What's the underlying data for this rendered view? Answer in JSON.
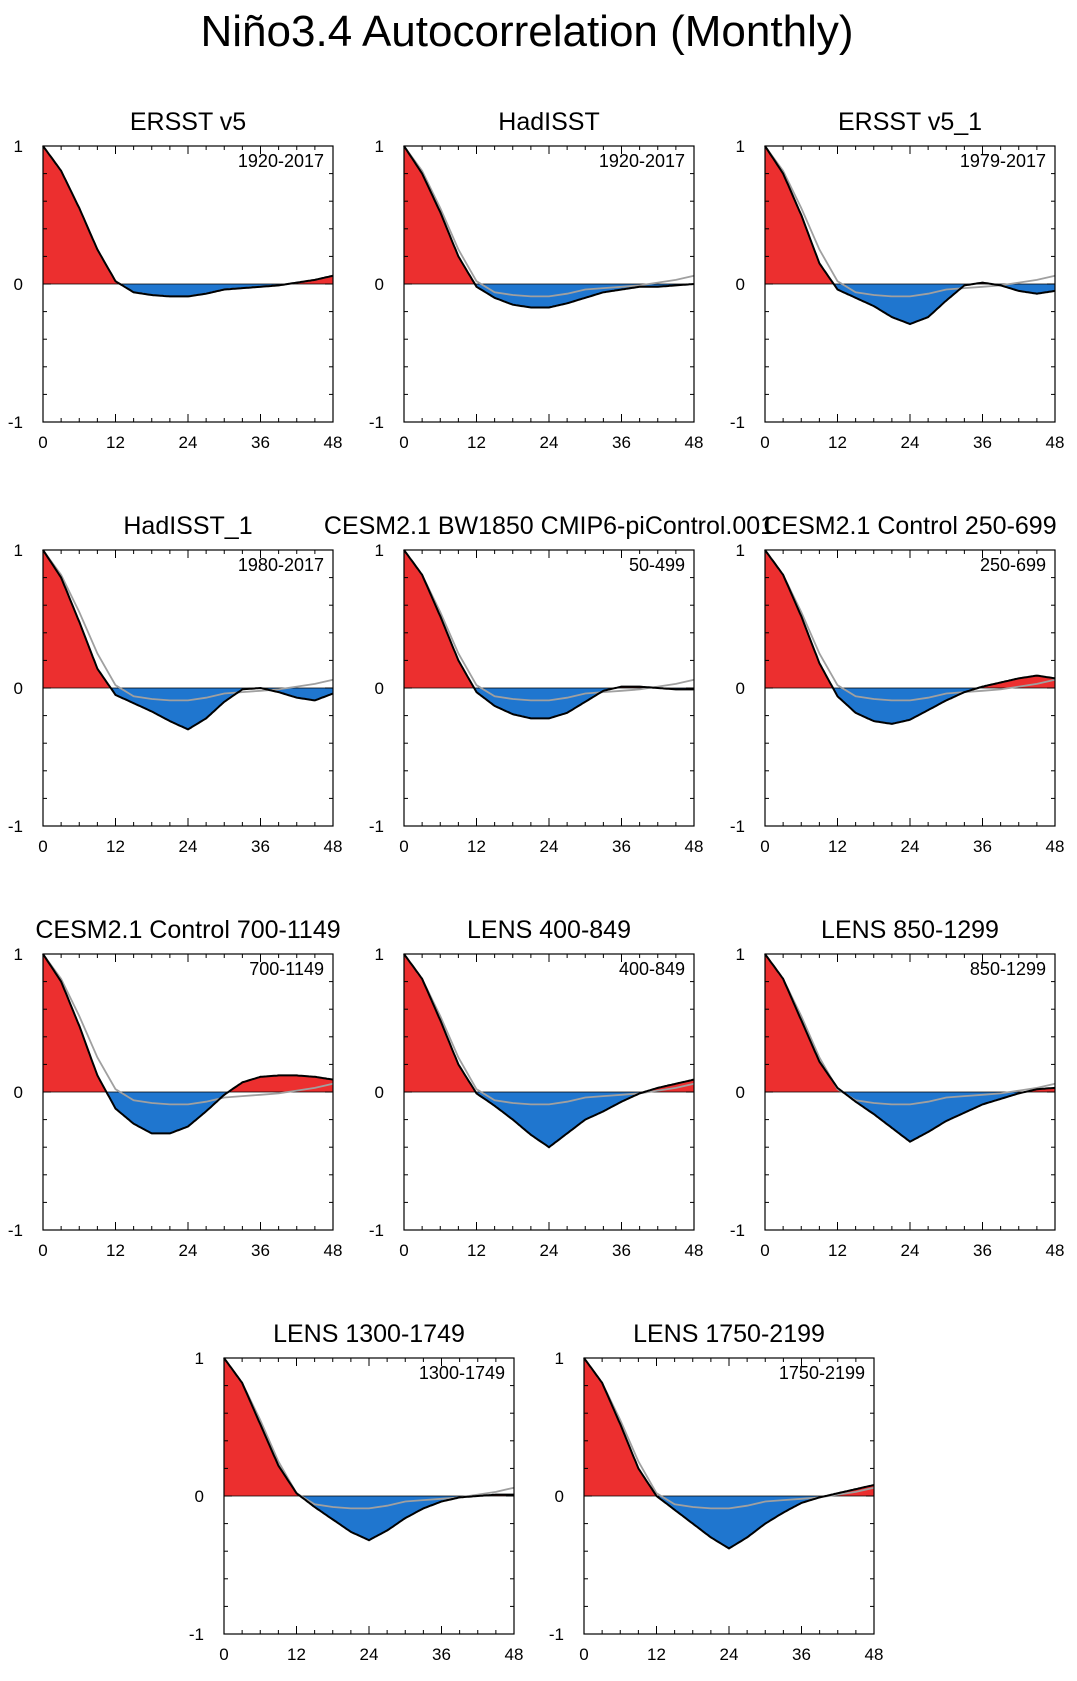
{
  "page_title": "Niño3.4 Autocorrelation (Monthly)",
  "colors": {
    "positive_fill": "#ec2f2f",
    "negative_fill": "#1f76cf",
    "line": "#000000",
    "reference_line": "#a0a0a0",
    "axis": "#000000"
  },
  "chart_data": [
    {
      "type": "area",
      "title": "ERSST v5",
      "period": "1920-2017",
      "xlim": [
        0,
        48
      ],
      "ylim": [
        -1,
        1
      ],
      "xticks": [
        "0",
        "12",
        "24",
        "36",
        "48"
      ],
      "yticks": [
        "1",
        "0",
        "-1"
      ],
      "x": [
        0,
        3,
        6,
        9,
        12,
        15,
        18,
        21,
        24,
        27,
        30,
        33,
        36,
        39,
        42,
        45,
        48
      ],
      "values": [
        1.0,
        0.82,
        0.55,
        0.25,
        0.02,
        -0.06,
        -0.08,
        -0.09,
        -0.09,
        -0.07,
        -0.04,
        -0.03,
        -0.02,
        -0.01,
        0.01,
        0.03,
        0.06
      ],
      "reference": [
        1.0,
        0.82,
        0.55,
        0.25,
        0.02,
        -0.06,
        -0.08,
        -0.09,
        -0.09,
        -0.07,
        -0.04,
        -0.03,
        -0.02,
        -0.01,
        0.01,
        0.03,
        0.06
      ]
    },
    {
      "type": "area",
      "title": "HadISST",
      "period": "1920-2017",
      "xlim": [
        0,
        48
      ],
      "ylim": [
        -1,
        1
      ],
      "xticks": [
        "0",
        "12",
        "24",
        "36",
        "48"
      ],
      "yticks": [
        "1",
        "0",
        "-1"
      ],
      "x": [
        0,
        3,
        6,
        9,
        12,
        15,
        18,
        21,
        24,
        27,
        30,
        33,
        36,
        39,
        42,
        45,
        48
      ],
      "values": [
        1.0,
        0.8,
        0.52,
        0.2,
        -0.02,
        -0.1,
        -0.15,
        -0.17,
        -0.17,
        -0.14,
        -0.1,
        -0.06,
        -0.04,
        -0.02,
        -0.02,
        -0.01,
        0.0
      ],
      "reference": [
        1.0,
        0.82,
        0.55,
        0.25,
        0.02,
        -0.06,
        -0.08,
        -0.09,
        -0.09,
        -0.07,
        -0.04,
        -0.03,
        -0.02,
        -0.01,
        0.01,
        0.03,
        0.06
      ]
    },
    {
      "type": "area",
      "title": "ERSST v5_1",
      "period": "1979-2017",
      "xlim": [
        0,
        48
      ],
      "ylim": [
        -1,
        1
      ],
      "xticks": [
        "0",
        "12",
        "24",
        "36",
        "48"
      ],
      "yticks": [
        "1",
        "0",
        "-1"
      ],
      "x": [
        0,
        3,
        6,
        9,
        12,
        15,
        18,
        21,
        24,
        27,
        30,
        33,
        36,
        39,
        42,
        45,
        48
      ],
      "values": [
        1.0,
        0.8,
        0.5,
        0.15,
        -0.04,
        -0.1,
        -0.16,
        -0.24,
        -0.29,
        -0.24,
        -0.12,
        -0.01,
        0.01,
        -0.01,
        -0.05,
        -0.07,
        -0.05
      ],
      "reference": [
        1.0,
        0.82,
        0.55,
        0.25,
        0.02,
        -0.06,
        -0.08,
        -0.09,
        -0.09,
        -0.07,
        -0.04,
        -0.03,
        -0.02,
        -0.01,
        0.01,
        0.03,
        0.06
      ]
    },
    {
      "type": "area",
      "title": "HadISST_1",
      "period": "1980-2017",
      "xlim": [
        0,
        48
      ],
      "ylim": [
        -1,
        1
      ],
      "xticks": [
        "0",
        "12",
        "24",
        "36",
        "48"
      ],
      "yticks": [
        "1",
        "0",
        "-1"
      ],
      "x": [
        0,
        3,
        6,
        9,
        12,
        15,
        18,
        21,
        24,
        27,
        30,
        33,
        36,
        39,
        42,
        45,
        48
      ],
      "values": [
        1.0,
        0.8,
        0.48,
        0.14,
        -0.05,
        -0.11,
        -0.17,
        -0.24,
        -0.3,
        -0.22,
        -0.1,
        -0.01,
        0.0,
        -0.03,
        -0.07,
        -0.09,
        -0.04
      ],
      "reference": [
        1.0,
        0.82,
        0.55,
        0.25,
        0.02,
        -0.06,
        -0.08,
        -0.09,
        -0.09,
        -0.07,
        -0.04,
        -0.03,
        -0.02,
        -0.01,
        0.01,
        0.03,
        0.06
      ]
    },
    {
      "type": "area",
      "title": "CESM2.1 BW1850 CMIP6-piControl.001",
      "period": "50-499",
      "xlim": [
        0,
        48
      ],
      "ylim": [
        -1,
        1
      ],
      "xticks": [
        "0",
        "12",
        "24",
        "36",
        "48"
      ],
      "yticks": [
        "1",
        "0",
        "-1"
      ],
      "x": [
        0,
        3,
        6,
        9,
        12,
        15,
        18,
        21,
        24,
        27,
        30,
        33,
        36,
        39,
        42,
        45,
        48
      ],
      "values": [
        1.0,
        0.82,
        0.52,
        0.2,
        -0.03,
        -0.13,
        -0.19,
        -0.22,
        -0.22,
        -0.18,
        -0.1,
        -0.02,
        0.01,
        0.01,
        0.0,
        -0.01,
        -0.01
      ],
      "reference": [
        1.0,
        0.82,
        0.55,
        0.25,
        0.02,
        -0.06,
        -0.08,
        -0.09,
        -0.09,
        -0.07,
        -0.04,
        -0.03,
        -0.02,
        -0.01,
        0.01,
        0.03,
        0.06
      ]
    },
    {
      "type": "area",
      "title": "CESM2.1 Control 250-699",
      "period": "250-699",
      "xlim": [
        0,
        48
      ],
      "ylim": [
        -1,
        1
      ],
      "xticks": [
        "0",
        "12",
        "24",
        "36",
        "48"
      ],
      "yticks": [
        "1",
        "0",
        "-1"
      ],
      "x": [
        0,
        3,
        6,
        9,
        12,
        15,
        18,
        21,
        24,
        27,
        30,
        33,
        36,
        39,
        42,
        45,
        48
      ],
      "values": [
        1.0,
        0.82,
        0.52,
        0.18,
        -0.06,
        -0.18,
        -0.24,
        -0.26,
        -0.23,
        -0.16,
        -0.09,
        -0.03,
        0.01,
        0.04,
        0.07,
        0.09,
        0.07
      ],
      "reference": [
        1.0,
        0.82,
        0.55,
        0.25,
        0.02,
        -0.06,
        -0.08,
        -0.09,
        -0.09,
        -0.07,
        -0.04,
        -0.03,
        -0.02,
        -0.01,
        0.01,
        0.03,
        0.06
      ]
    },
    {
      "type": "area",
      "title": "CESM2.1 Control 700-1149",
      "period": "700-1149",
      "xlim": [
        0,
        48
      ],
      "ylim": [
        -1,
        1
      ],
      "xticks": [
        "0",
        "12",
        "24",
        "36",
        "48"
      ],
      "yticks": [
        "1",
        "0",
        "-1"
      ],
      "x": [
        0,
        3,
        6,
        9,
        12,
        15,
        18,
        21,
        24,
        27,
        30,
        33,
        36,
        39,
        42,
        45,
        48
      ],
      "values": [
        1.0,
        0.8,
        0.48,
        0.12,
        -0.12,
        -0.23,
        -0.3,
        -0.3,
        -0.25,
        -0.14,
        -0.02,
        0.07,
        0.11,
        0.12,
        0.12,
        0.11,
        0.09
      ],
      "reference": [
        1.0,
        0.82,
        0.55,
        0.25,
        0.02,
        -0.06,
        -0.08,
        -0.09,
        -0.09,
        -0.07,
        -0.04,
        -0.03,
        -0.02,
        -0.01,
        0.01,
        0.03,
        0.06
      ]
    },
    {
      "type": "area",
      "title": "LENS 400-849",
      "period": "400-849",
      "xlim": [
        0,
        48
      ],
      "ylim": [
        -1,
        1
      ],
      "xticks": [
        "0",
        "12",
        "24",
        "36",
        "48"
      ],
      "yticks": [
        "1",
        "0",
        "-1"
      ],
      "x": [
        0,
        3,
        6,
        9,
        12,
        15,
        18,
        21,
        24,
        27,
        30,
        33,
        36,
        39,
        42,
        45,
        48
      ],
      "values": [
        1.0,
        0.82,
        0.52,
        0.2,
        -0.01,
        -0.1,
        -0.2,
        -0.31,
        -0.4,
        -0.3,
        -0.2,
        -0.14,
        -0.07,
        -0.01,
        0.03,
        0.06,
        0.09
      ],
      "reference": [
        1.0,
        0.82,
        0.55,
        0.25,
        0.02,
        -0.06,
        -0.08,
        -0.09,
        -0.09,
        -0.07,
        -0.04,
        -0.03,
        -0.02,
        -0.01,
        0.01,
        0.03,
        0.06
      ]
    },
    {
      "type": "area",
      "title": "LENS 850-1299",
      "period": "850-1299",
      "xlim": [
        0,
        48
      ],
      "ylim": [
        -1,
        1
      ],
      "xticks": [
        "0",
        "12",
        "24",
        "36",
        "48"
      ],
      "yticks": [
        "1",
        "0",
        "-1"
      ],
      "x": [
        0,
        3,
        6,
        9,
        12,
        15,
        18,
        21,
        24,
        27,
        30,
        33,
        36,
        39,
        42,
        45,
        48
      ],
      "values": [
        1.0,
        0.82,
        0.52,
        0.22,
        0.03,
        -0.07,
        -0.16,
        -0.26,
        -0.36,
        -0.29,
        -0.21,
        -0.15,
        -0.09,
        -0.05,
        -0.01,
        0.02,
        0.03
      ],
      "reference": [
        1.0,
        0.82,
        0.55,
        0.25,
        0.02,
        -0.06,
        -0.08,
        -0.09,
        -0.09,
        -0.07,
        -0.04,
        -0.03,
        -0.02,
        -0.01,
        0.01,
        0.03,
        0.06
      ]
    },
    {
      "type": "area",
      "title": "LENS 1300-1749",
      "period": "1300-1749",
      "xlim": [
        0,
        48
      ],
      "ylim": [
        -1,
        1
      ],
      "xticks": [
        "0",
        "12",
        "24",
        "36",
        "48"
      ],
      "yticks": [
        "1",
        "0",
        "-1"
      ],
      "x": [
        0,
        3,
        6,
        9,
        12,
        15,
        18,
        21,
        24,
        27,
        30,
        33,
        36,
        39,
        42,
        45,
        48
      ],
      "values": [
        1.0,
        0.82,
        0.52,
        0.22,
        0.02,
        -0.08,
        -0.17,
        -0.26,
        -0.32,
        -0.25,
        -0.16,
        -0.09,
        -0.04,
        -0.01,
        0.0,
        0.01,
        0.01
      ],
      "reference": [
        1.0,
        0.82,
        0.55,
        0.25,
        0.02,
        -0.06,
        -0.08,
        -0.09,
        -0.09,
        -0.07,
        -0.04,
        -0.03,
        -0.02,
        -0.01,
        0.01,
        0.03,
        0.06
      ]
    },
    {
      "type": "area",
      "title": "LENS 1750-2199",
      "period": "1750-2199",
      "xlim": [
        0,
        48
      ],
      "ylim": [
        -1,
        1
      ],
      "xticks": [
        "0",
        "12",
        "24",
        "36",
        "48"
      ],
      "yticks": [
        "1",
        "0",
        "-1"
      ],
      "x": [
        0,
        3,
        6,
        9,
        12,
        15,
        18,
        21,
        24,
        27,
        30,
        33,
        36,
        39,
        42,
        45,
        48
      ],
      "values": [
        1.0,
        0.82,
        0.52,
        0.2,
        0.0,
        -0.1,
        -0.2,
        -0.3,
        -0.38,
        -0.3,
        -0.2,
        -0.12,
        -0.05,
        -0.01,
        0.02,
        0.05,
        0.08
      ],
      "reference": [
        1.0,
        0.82,
        0.55,
        0.25,
        0.02,
        -0.06,
        -0.08,
        -0.09,
        -0.09,
        -0.07,
        -0.04,
        -0.03,
        -0.02,
        -0.01,
        0.01,
        0.03,
        0.06
      ]
    }
  ]
}
